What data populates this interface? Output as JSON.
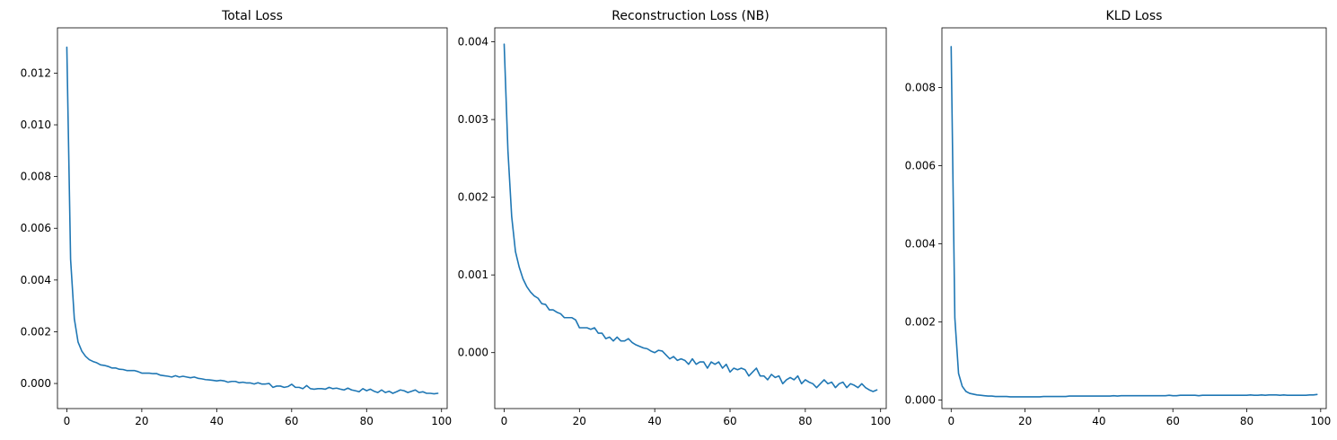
{
  "chart_data": [
    {
      "type": "line",
      "title": "Total Loss",
      "xlabel": "",
      "ylabel": "",
      "xlim": [
        -2.5,
        101.5
      ],
      "ylim": [
        -0.00097,
        0.01375
      ],
      "xticks": [
        0,
        20,
        40,
        60,
        80,
        100
      ],
      "xtick_labels": [
        "0",
        "20",
        "40",
        "60",
        "80",
        "100"
      ],
      "yticks": [
        0,
        0.002,
        0.004,
        0.006,
        0.008,
        0.01,
        0.012
      ],
      "ytick_labels": [
        "0.000",
        "0.002",
        "0.004",
        "0.006",
        "0.008",
        "0.010",
        "0.012"
      ],
      "grid": false,
      "color": "#1f77b4",
      "x_start": 0,
      "x_step": 1,
      "values": [
        0.013,
        0.0048,
        0.0025,
        0.0016,
        0.00125,
        0.00105,
        0.00092,
        0.00085,
        0.0008,
        0.00072,
        0.0007,
        0.00066,
        0.0006,
        0.0006,
        0.00055,
        0.00054,
        0.0005,
        0.0005,
        0.0005,
        0.00046,
        0.0004,
        0.0004,
        0.0004,
        0.00038,
        0.00038,
        0.00032,
        0.0003,
        0.00028,
        0.00025,
        0.0003,
        0.00025,
        0.00028,
        0.00025,
        0.00022,
        0.00025,
        0.0002,
        0.00018,
        0.00015,
        0.00014,
        0.00012,
        0.0001,
        0.00012,
        0.0001,
        5e-05,
        8e-05,
        8e-05,
        3e-05,
        5e-05,
        2e-05,
        2e-05,
        -2e-05,
        3e-05,
        -2e-05,
        -2e-05,
        0.0,
        -0.00015,
        -0.0001,
        -0.0001,
        -0.00015,
        -0.00012,
        -3e-05,
        -0.00015,
        -0.00015,
        -0.0002,
        -8e-05,
        -0.0002,
        -0.00022,
        -0.0002,
        -0.0002,
        -0.00022,
        -0.00015,
        -0.0002,
        -0.00018,
        -0.00022,
        -0.00025,
        -0.00018,
        -0.00025,
        -0.00028,
        -0.00032,
        -0.0002,
        -0.00028,
        -0.00022,
        -0.0003,
        -0.00035,
        -0.00025,
        -0.00035,
        -0.0003,
        -0.00038,
        -0.00032,
        -0.00025,
        -0.00028,
        -0.00035,
        -0.0003,
        -0.00025,
        -0.00035,
        -0.00032,
        -0.00038,
        -0.00038,
        -0.0004,
        -0.00038
      ]
    },
    {
      "type": "line",
      "title": "Reconstruction Loss (NB)",
      "xlabel": "",
      "ylabel": "",
      "xlim": [
        -2.5,
        101.5
      ],
      "ylim": [
        -0.00072,
        0.00418
      ],
      "xticks": [
        0,
        20,
        40,
        60,
        80,
        100
      ],
      "xtick_labels": [
        "0",
        "20",
        "40",
        "60",
        "80",
        "100"
      ],
      "yticks": [
        0,
        0.001,
        0.002,
        0.003,
        0.004
      ],
      "ytick_labels": [
        "0.000",
        "0.001",
        "0.002",
        "0.003",
        "0.004"
      ],
      "grid": false,
      "color": "#1f77b4",
      "x_start": 0,
      "x_step": 1,
      "values": [
        0.00397,
        0.0026,
        0.00175,
        0.0013,
        0.0011,
        0.00095,
        0.00085,
        0.00078,
        0.00073,
        0.0007,
        0.00063,
        0.00062,
        0.00055,
        0.00055,
        0.00052,
        0.0005,
        0.00045,
        0.00045,
        0.00045,
        0.00042,
        0.00032,
        0.00032,
        0.00032,
        0.0003,
        0.00032,
        0.00025,
        0.00025,
        0.00018,
        0.0002,
        0.00015,
        0.0002,
        0.00015,
        0.00015,
        0.00018,
        0.00013,
        0.0001,
        8e-05,
        6e-05,
        5e-05,
        2e-05,
        0.0,
        3e-05,
        2e-05,
        -3e-05,
        -8e-05,
        -5e-05,
        -0.0001,
        -8e-05,
        -0.0001,
        -0.00015,
        -8e-05,
        -0.00015,
        -0.00012,
        -0.00012,
        -0.0002,
        -0.00012,
        -0.00015,
        -0.00012,
        -0.0002,
        -0.00015,
        -0.00025,
        -0.0002,
        -0.00022,
        -0.0002,
        -0.00022,
        -0.0003,
        -0.00025,
        -0.0002,
        -0.0003,
        -0.0003,
        -0.00035,
        -0.00028,
        -0.00032,
        -0.0003,
        -0.0004,
        -0.00035,
        -0.00032,
        -0.00035,
        -0.0003,
        -0.0004,
        -0.00035,
        -0.00038,
        -0.0004,
        -0.00045,
        -0.0004,
        -0.00035,
        -0.0004,
        -0.00038,
        -0.00045,
        -0.0004,
        -0.00038,
        -0.00045,
        -0.0004,
        -0.00042,
        -0.00045,
        -0.0004,
        -0.00045,
        -0.00048,
        -0.0005,
        -0.00048
      ]
    },
    {
      "type": "line",
      "title": "KLD Loss",
      "xlabel": "",
      "ylabel": "",
      "xlim": [
        -2.5,
        101.5
      ],
      "ylim": [
        -0.00022,
        0.00953
      ],
      "xticks": [
        0,
        20,
        40,
        60,
        80,
        100
      ],
      "xtick_labels": [
        "0",
        "20",
        "40",
        "60",
        "80",
        "100"
      ],
      "yticks": [
        0,
        0.002,
        0.004,
        0.006,
        0.008
      ],
      "ytick_labels": [
        "0.000",
        "0.002",
        "0.004",
        "0.006",
        "0.008"
      ],
      "grid": false,
      "color": "#1f77b4",
      "x_start": 0,
      "x_step": 1,
      "values": [
        0.00905,
        0.0021,
        0.00068,
        0.00035,
        0.00022,
        0.00017,
        0.00015,
        0.00013,
        0.00012,
        0.00011,
        0.0001,
        0.0001,
        9e-05,
        9e-05,
        9e-05,
        9e-05,
        8e-05,
        8e-05,
        8e-05,
        8e-05,
        8e-05,
        8e-05,
        8e-05,
        8e-05,
        8e-05,
        9e-05,
        9e-05,
        9e-05,
        9e-05,
        9e-05,
        9e-05,
        9e-05,
        0.0001,
        0.0001,
        0.0001,
        0.0001,
        0.0001,
        0.0001,
        0.0001,
        0.0001,
        0.0001,
        0.0001,
        0.0001,
        0.0001,
        0.00011,
        0.0001,
        0.00011,
        0.00011,
        0.00011,
        0.00011,
        0.00011,
        0.00011,
        0.00011,
        0.00011,
        0.00011,
        0.00011,
        0.00011,
        0.00011,
        0.00011,
        0.00012,
        0.00011,
        0.00011,
        0.00012,
        0.00012,
        0.00012,
        0.00012,
        0.00012,
        0.00011,
        0.00012,
        0.00012,
        0.00012,
        0.00012,
        0.00012,
        0.00012,
        0.00012,
        0.00012,
        0.00012,
        0.00012,
        0.00012,
        0.00012,
        0.00012,
        0.00013,
        0.00012,
        0.00012,
        0.00013,
        0.00012,
        0.00013,
        0.00013,
        0.00013,
        0.00012,
        0.00013,
        0.00012,
        0.00012,
        0.00012,
        0.00012,
        0.00012,
        0.00012,
        0.00013,
        0.00013,
        0.00014
      ]
    }
  ]
}
